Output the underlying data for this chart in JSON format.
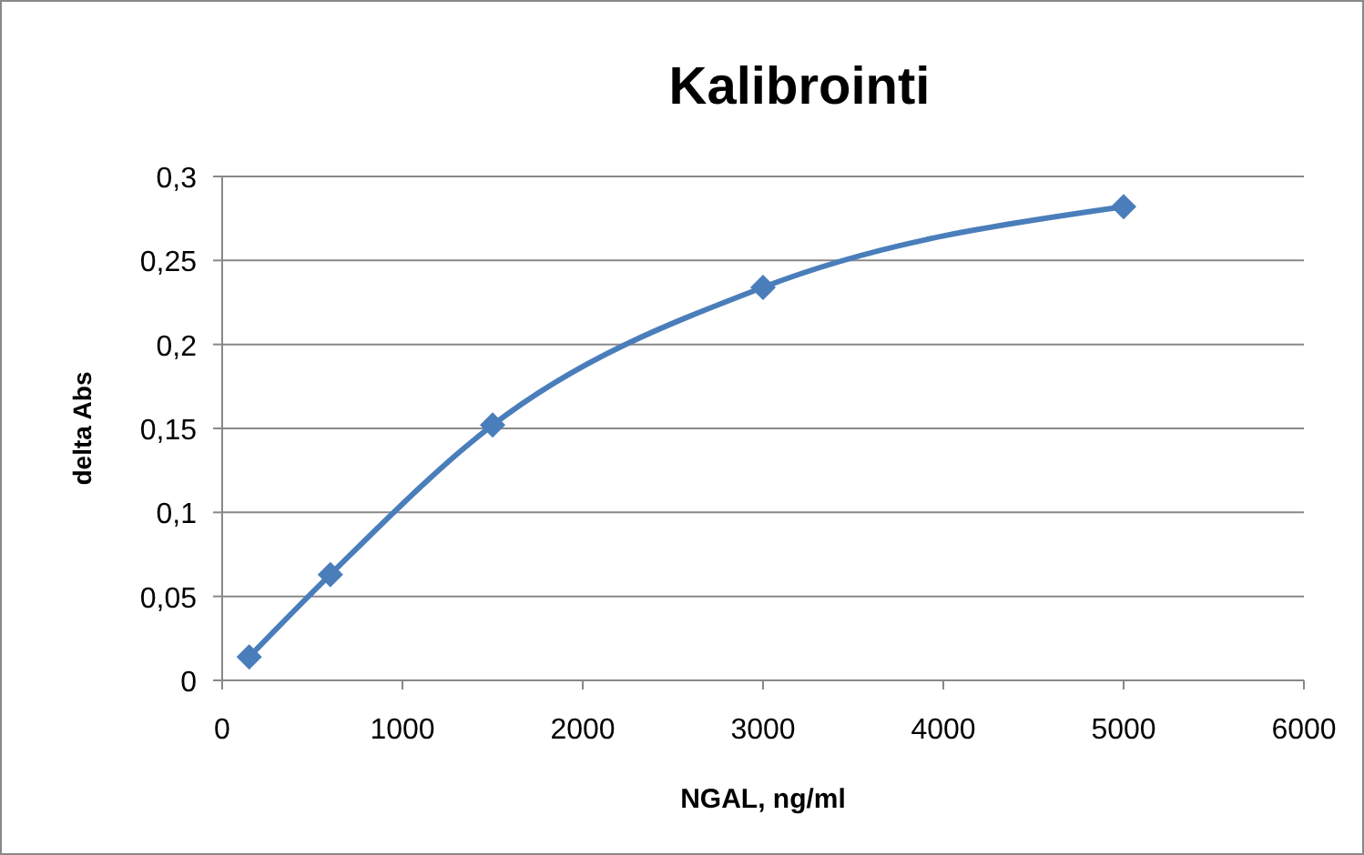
{
  "chart_data": {
    "type": "line",
    "title": "Kalibrointi",
    "xlabel": "NGAL, ng/ml",
    "ylabel": "delta Abs",
    "x": [
      150,
      600,
      1500,
      3000,
      5000
    ],
    "series": [
      {
        "color": "#4a7ebb",
        "values": [
          0.014,
          0.063,
          0.152,
          0.234,
          0.282
        ]
      }
    ],
    "xlim": [
      0,
      6000
    ],
    "xticks": [
      0,
      1000,
      2000,
      3000,
      4000,
      5000,
      6000
    ],
    "ylim": [
      0,
      0.3
    ],
    "yticks": [
      {
        "value": 0,
        "label": "0"
      },
      {
        "value": 0.05,
        "label": "0,05"
      },
      {
        "value": 0.1,
        "label": "0,1"
      },
      {
        "value": 0.15,
        "label": "0,15"
      },
      {
        "value": 0.2,
        "label": "0,2"
      },
      {
        "value": 0.25,
        "label": "0,25"
      },
      {
        "value": 0.3,
        "label": "0,3"
      }
    ],
    "grid": "y",
    "marker": "diamond",
    "line_style": "solid"
  }
}
